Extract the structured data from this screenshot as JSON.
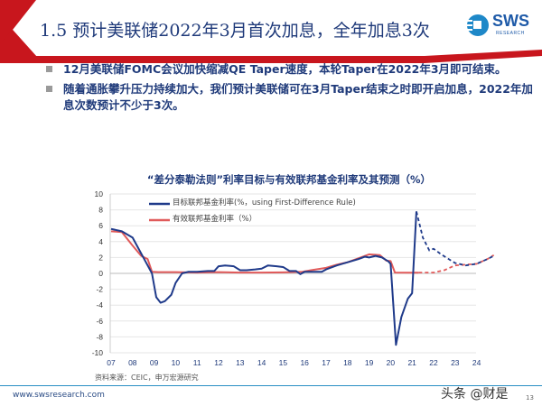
{
  "header": {
    "title": "1.5 预计美联储2022年3月首次加息，全年加息3次",
    "logo_text": "SWS",
    "logo_sub": "RESEARCH",
    "accent_color": "#c8161d"
  },
  "bullets": [
    {
      "text": "12月美联储FOMC会议加快缩减QE Taper速度，本轮Taper在2022年3月即可结束。"
    },
    {
      "text": "随着通胀攀升压力持续加大，我们预计美联储可在3月Taper结束之时即开启加息，2022年加息次数预计不少于3次。"
    }
  ],
  "chart_data": {
    "type": "line",
    "title": "“差分泰勒法则”利率目标与有效联邦基金利率及其预测（%）",
    "xlabel": "",
    "ylabel": "",
    "ylim": [
      -10,
      10
    ],
    "yticks": [
      "10",
      "8",
      "6",
      "4",
      "2",
      "0",
      "-2",
      "-4",
      "-6",
      "-8",
      "-10"
    ],
    "xticks": [
      "07",
      "08",
      "09",
      "10",
      "11",
      "12",
      "13",
      "14",
      "15",
      "16",
      "17",
      "18",
      "19",
      "20",
      "21",
      "22",
      "23",
      "24"
    ],
    "xlim": [
      2007,
      2025
    ],
    "grid": true,
    "legend": "top-left",
    "series": [
      {
        "name": "目标联邦基金利率(%，using First-Difference Rule)",
        "color": "#1f3a8a",
        "x": [
          2007,
          2007.5,
          2008,
          2008.3,
          2008.6,
          2008.9,
          2009.1,
          2009.3,
          2009.5,
          2009.8,
          2010,
          2010.3,
          2010.6,
          2011,
          2011.5,
          2011.8,
          2012,
          2012.3,
          2012.7,
          2013,
          2013.3,
          2013.7,
          2014,
          2014.3,
          2014.7,
          2015,
          2015.3,
          2015.6,
          2015.8,
          2016,
          2016.5,
          2016.8,
          2017,
          2017.5,
          2018,
          2018.5,
          2018.8,
          2019,
          2019.3,
          2019.6,
          2019.9,
          2020,
          2020.25,
          2020.5,
          2020.8,
          2021,
          2021.2
        ],
        "y": [
          5.6,
          5.3,
          4.5,
          3,
          1.5,
          0,
          -3,
          -3.7,
          -3.5,
          -2.7,
          -1.2,
          0,
          0.2,
          0.2,
          0.3,
          0.3,
          0.9,
          1,
          0.9,
          0.4,
          0.4,
          0.5,
          0.6,
          1,
          0.9,
          0.8,
          0.3,
          0.3,
          -0.1,
          0.2,
          0.2,
          0.2,
          0.5,
          1,
          1.4,
          1.8,
          2.1,
          2,
          2.2,
          2,
          1.5,
          1.2,
          -9,
          -5.5,
          -3.2,
          -2.5,
          7.8
        ],
        "forecast": {
          "x": [
            2021.2,
            2021.5,
            2021.8,
            2022,
            2022.3,
            2022.7,
            2023,
            2023.5,
            2024,
            2024.5,
            2024.8
          ],
          "y": [
            7.8,
            4.5,
            2.9,
            3.1,
            2.5,
            1.8,
            1.3,
            1,
            1.2,
            1.8,
            2.2
          ]
        }
      },
      {
        "name": "有效联邦基金利率（%）",
        "color": "#e05a5a",
        "x": [
          2007,
          2007.5,
          2008,
          2008.4,
          2008.7,
          2008.9,
          2009.2,
          2010,
          2011,
          2012,
          2013,
          2014,
          2015,
          2015.9,
          2016.3,
          2017,
          2017.5,
          2018,
          2018.5,
          2019,
          2019.5,
          2019.8,
          2020,
          2020.2,
          2021,
          2021.3
        ],
        "y": [
          5.3,
          5.2,
          3.5,
          2.2,
          1.8,
          0.2,
          0.15,
          0.15,
          0.1,
          0.15,
          0.1,
          0.1,
          0.13,
          0.2,
          0.4,
          0.7,
          1.1,
          1.4,
          1.9,
          2.4,
          2.3,
          1.6,
          1.55,
          0.1,
          0.08,
          0.08
        ],
        "forecast": {
          "x": [
            2021.3,
            2022,
            2022.5,
            2023,
            2023.5,
            2024,
            2024.5,
            2024.8
          ],
          "y": [
            0.1,
            0.1,
            0.4,
            1,
            1.1,
            1.2,
            1.8,
            2.3
          ]
        }
      }
    ]
  },
  "source": "资料来源：CEIC，申万宏源研究",
  "footer": {
    "url": "www.swsresearch.com",
    "page": "13",
    "watermark": "头条 @财是"
  }
}
